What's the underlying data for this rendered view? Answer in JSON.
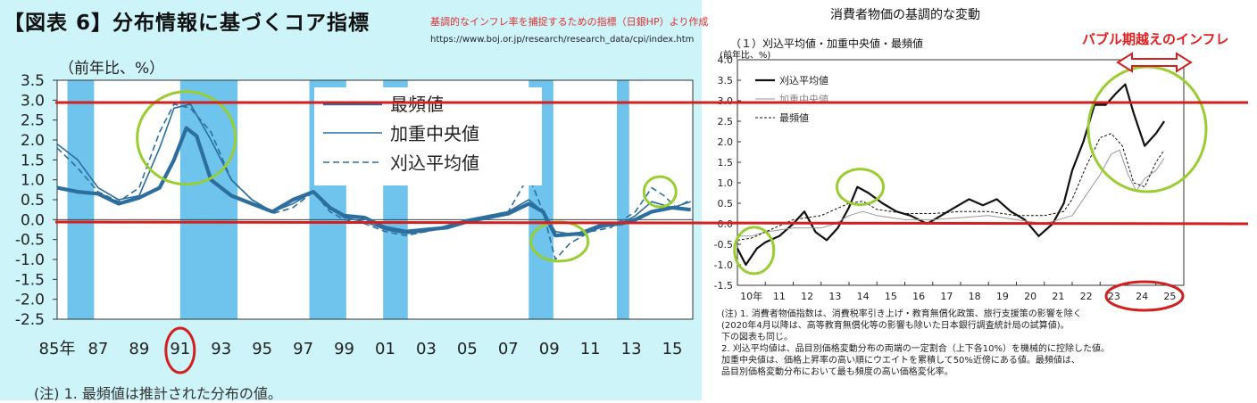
{
  "header": {
    "left_title": "【図表 6】分布情報に基づくコア指標",
    "source_note": "基調的なインフレ率を捕捉するための指標（日銀HP）より作成",
    "source_url": "https://www.boj.or.jp/research/research_data/cpi/index.htm",
    "right_title": "消費者物価の基調的な変動",
    "right_subtitle": "（１）刈込平均値・加重中央値・最頻値",
    "bubble_label": "バブル期越えのインフレ"
  },
  "left_chart": {
    "unit_label": "（前年比、%）",
    "note": "(注) 1.  最頻値は推計された分布の値。"
  },
  "right_chart": {
    "unit_label": "(前年比、%)",
    "notes": [
      "(注) 1.  消費者物価指数は、消費税率引き上げ・教育無償化政策、旅行支援策の影響を除く",
      "         (2020年4月以降は、高等教育無償化等の影響も除いた日本銀行調査統計局の試算値)。",
      "         下の図表も同じ。",
      "      2.  刈込平均値は、品目別価格変動分布の両端の一定割合（上下各10%）を機械的に控除した値。",
      "         加重中央値は、価格上昇率の高い順にウエイトを累積して50%近傍にある値。最頻値は、",
      "         品目別価格変動分布において最も頻度の高い価格変化率。"
    ]
  },
  "colors": {
    "left_background": "#cdf4f9",
    "recession_band": "#6ec4ec",
    "series_blue": "#2c6e9e",
    "annotation_green": "#9acd32",
    "annotation_red": "#d02020"
  },
  "chart_data": [
    {
      "type": "line",
      "ylim": [
        -2.5,
        3.5
      ],
      "yticks": [
        "3.5",
        "3.0",
        "2.5",
        "2.0",
        "1.5",
        "1.0",
        "0.5",
        "0.0",
        "-0.5",
        "-1.0",
        "-1.5",
        "-2.0",
        "-2.5"
      ],
      "xlim": [
        1985,
        2016
      ],
      "xtick_values": [
        1985,
        1987,
        1989,
        1991,
        1993,
        1995,
        1997,
        1999,
        2001,
        2003,
        2005,
        2007,
        2009,
        2011,
        2013,
        2015
      ],
      "xtick_labels": [
        "85年",
        "87",
        "89",
        "91",
        "93",
        "95",
        "97",
        "99",
        "01",
        "03",
        "05",
        "07",
        "09",
        "11",
        "13",
        "15"
      ],
      "grid": false,
      "legend_position": "top-center",
      "shaded_periods": [
        [
          1985.5,
          1986.8
        ],
        [
          1991.0,
          1993.8
        ],
        [
          1997.3,
          1999.1
        ],
        [
          2000.9,
          2002.1
        ],
        [
          2008.0,
          2009.2
        ],
        [
          2012.3,
          2012.9
        ]
      ],
      "series": [
        {
          "name": "最頻値",
          "style": "solid-thick",
          "points": [
            [
              1985,
              0.8
            ],
            [
              1986,
              0.7
            ],
            [
              1987,
              0.65
            ],
            [
              1988,
              0.4
            ],
            [
              1989,
              0.55
            ],
            [
              1990,
              0.8
            ],
            [
              1990.7,
              1.5
            ],
            [
              1991.3,
              2.3
            ],
            [
              1991.8,
              2.1
            ],
            [
              1992.5,
              1.0
            ],
            [
              1993.5,
              0.6
            ],
            [
              1994.5,
              0.4
            ],
            [
              1995.5,
              0.2
            ],
            [
              1996.5,
              0.5
            ],
            [
              1997.5,
              0.7
            ],
            [
              1998.3,
              0.3
            ],
            [
              1999,
              0.1
            ],
            [
              2000,
              0.05
            ],
            [
              2001,
              -0.2
            ],
            [
              2002,
              -0.3
            ],
            [
              2003,
              -0.25
            ],
            [
              2004,
              -0.2
            ],
            [
              2005,
              -0.05
            ],
            [
              2006,
              0.05
            ],
            [
              2007,
              0.15
            ],
            [
              2008,
              0.4
            ],
            [
              2008.7,
              0.2
            ],
            [
              2009.3,
              -0.4
            ],
            [
              2010.5,
              -0.35
            ],
            [
              2011.5,
              -0.15
            ],
            [
              2012.5,
              -0.1
            ],
            [
              2013.2,
              0.0
            ],
            [
              2014,
              0.2
            ],
            [
              2015,
              0.3
            ],
            [
              2015.9,
              0.25
            ]
          ]
        },
        {
          "name": "加重中央値",
          "style": "solid",
          "points": [
            [
              1985,
              1.9
            ],
            [
              1986,
              1.5
            ],
            [
              1987,
              0.8
            ],
            [
              1988,
              0.5
            ],
            [
              1989,
              0.6
            ],
            [
              1990,
              1.8
            ],
            [
              1990.7,
              2.8
            ],
            [
              1991.5,
              2.9
            ],
            [
              1992.5,
              2.0
            ],
            [
              1993.5,
              1.0
            ],
            [
              1994.5,
              0.5
            ],
            [
              1995.5,
              0.2
            ],
            [
              1996.5,
              0.4
            ],
            [
              1997.5,
              0.7
            ],
            [
              1998.3,
              0.3
            ],
            [
              1999,
              0.05
            ],
            [
              2000,
              -0.05
            ],
            [
              2001,
              -0.25
            ],
            [
              2002,
              -0.35
            ],
            [
              2003,
              -0.3
            ],
            [
              2004,
              -0.15
            ],
            [
              2005,
              0.0
            ],
            [
              2006,
              0.1
            ],
            [
              2007,
              0.2
            ],
            [
              2008,
              0.5
            ],
            [
              2008.7,
              0.2
            ],
            [
              2009.3,
              -0.3
            ],
            [
              2010.5,
              -0.4
            ],
            [
              2011.5,
              -0.2
            ],
            [
              2012.5,
              -0.1
            ],
            [
              2013.2,
              0.1
            ],
            [
              2014,
              0.45
            ],
            [
              2015,
              0.3
            ],
            [
              2015.9,
              0.45
            ]
          ]
        },
        {
          "name": "刈込平均値",
          "style": "dashed",
          "points": [
            [
              1985,
              1.8
            ],
            [
              1986,
              1.3
            ],
            [
              1987,
              0.7
            ],
            [
              1988,
              0.45
            ],
            [
              1989,
              0.8
            ],
            [
              1990,
              2.2
            ],
            [
              1990.7,
              2.9
            ],
            [
              1991.5,
              2.8
            ],
            [
              1992.5,
              2.2
            ],
            [
              1993.5,
              1.0
            ],
            [
              1994.5,
              0.5
            ],
            [
              1995.5,
              0.15
            ],
            [
              1996.5,
              0.3
            ],
            [
              1997.5,
              0.7
            ],
            [
              1998.3,
              0.2
            ],
            [
              1999,
              0.0
            ],
            [
              2000,
              -0.1
            ],
            [
              2001,
              -0.3
            ],
            [
              2002,
              -0.4
            ],
            [
              2003,
              -0.3
            ],
            [
              2004,
              -0.2
            ],
            [
              2005,
              -0.05
            ],
            [
              2006,
              0.1
            ],
            [
              2007,
              0.2
            ],
            [
              2008,
              1.1
            ],
            [
              2008.7,
              0.2
            ],
            [
              2009.3,
              -1.0
            ],
            [
              2010,
              -0.6
            ],
            [
              2011,
              -0.3
            ],
            [
              2012,
              -0.2
            ],
            [
              2013.2,
              0.2
            ],
            [
              2014,
              0.8
            ],
            [
              2014.6,
              0.6
            ],
            [
              2015.2,
              0.3
            ],
            [
              2015.9,
              0.5
            ]
          ]
        }
      ]
    },
    {
      "type": "line",
      "ylim": [
        -1.5,
        4.0
      ],
      "yticks": [
        "4.0",
        "3.5",
        "3.0",
        "2.5",
        "2.0",
        "1.5",
        "1.0",
        "0.5",
        "0.0",
        "-0.5",
        "-1.0",
        "-1.5"
      ],
      "xlim": [
        2010,
        2026
      ],
      "xtick_values": [
        2010,
        2011,
        2012,
        2013,
        2014,
        2015,
        2016,
        2017,
        2018,
        2019,
        2020,
        2021,
        2022,
        2023,
        2024,
        2025
      ],
      "xtick_labels": [
        "10年",
        "11",
        "12",
        "13",
        "14",
        "15",
        "16",
        "17",
        "18",
        "19",
        "20",
        "21",
        "22",
        "23",
        "24",
        "25"
      ],
      "grid": false,
      "legend_position": "top-left",
      "series": [
        {
          "name": "刈込平均値",
          "style": "solid-thick",
          "points": [
            [
              2010,
              -0.6
            ],
            [
              2010.3,
              -1.0
            ],
            [
              2010.7,
              -0.6
            ],
            [
              2011,
              -0.45
            ],
            [
              2011.5,
              -0.3
            ],
            [
              2012,
              0.0
            ],
            [
              2012.4,
              0.3
            ],
            [
              2012.8,
              -0.2
            ],
            [
              2013.2,
              -0.4
            ],
            [
              2013.6,
              -0.1
            ],
            [
              2014,
              0.4
            ],
            [
              2014.3,
              0.9
            ],
            [
              2014.7,
              0.75
            ],
            [
              2015.2,
              0.5
            ],
            [
              2015.7,
              0.3
            ],
            [
              2016.2,
              0.2
            ],
            [
              2016.8,
              0.0
            ],
            [
              2017.3,
              0.2
            ],
            [
              2017.8,
              0.4
            ],
            [
              2018.3,
              0.6
            ],
            [
              2018.8,
              0.45
            ],
            [
              2019.3,
              0.6
            ],
            [
              2019.8,
              0.3
            ],
            [
              2020.3,
              0.1
            ],
            [
              2020.8,
              -0.3
            ],
            [
              2021.3,
              0.0
            ],
            [
              2021.7,
              0.5
            ],
            [
              2022,
              1.3
            ],
            [
              2022.4,
              2.0
            ],
            [
              2022.8,
              2.9
            ],
            [
              2023.2,
              2.9
            ],
            [
              2023.6,
              3.2
            ],
            [
              2023.9,
              3.4
            ],
            [
              2024.2,
              2.7
            ],
            [
              2024.6,
              1.9
            ],
            [
              2025,
              2.2
            ],
            [
              2025.3,
              2.5
            ]
          ]
        },
        {
          "name": "加重中央値",
          "style": "solid-thin-gray",
          "points": [
            [
              2010,
              -0.3
            ],
            [
              2010.5,
              -0.3
            ],
            [
              2011,
              -0.2
            ],
            [
              2012,
              -0.1
            ],
            [
              2013,
              -0.1
            ],
            [
              2013.5,
              0.0
            ],
            [
              2014,
              0.2
            ],
            [
              2014.5,
              0.3
            ],
            [
              2015,
              0.2
            ],
            [
              2016,
              0.1
            ],
            [
              2017,
              0.1
            ],
            [
              2018,
              0.15
            ],
            [
              2019,
              0.2
            ],
            [
              2020,
              0.1
            ],
            [
              2021,
              0.0
            ],
            [
              2022,
              0.2
            ],
            [
              2022.5,
              0.7
            ],
            [
              2023,
              1.2
            ],
            [
              2023.4,
              1.7
            ],
            [
              2023.7,
              1.8
            ],
            [
              2024,
              1.2
            ],
            [
              2024.3,
              0.8
            ],
            [
              2024.6,
              1.1
            ],
            [
              2025,
              1.3
            ],
            [
              2025.3,
              1.6
            ]
          ]
        },
        {
          "name": "最頻値",
          "style": "dashed",
          "points": [
            [
              2010,
              -0.4
            ],
            [
              2010.5,
              -0.35
            ],
            [
              2011,
              -0.2
            ],
            [
              2012,
              0.1
            ],
            [
              2013,
              0.2
            ],
            [
              2014,
              0.5
            ],
            [
              2014.5,
              0.55
            ],
            [
              2015,
              0.35
            ],
            [
              2016,
              0.25
            ],
            [
              2017,
              0.25
            ],
            [
              2018,
              0.3
            ],
            [
              2019,
              0.3
            ],
            [
              2020,
              0.2
            ],
            [
              2021,
              0.2
            ],
            [
              2021.7,
              0.3
            ],
            [
              2022,
              0.6
            ],
            [
              2022.5,
              1.4
            ],
            [
              2023,
              2.1
            ],
            [
              2023.4,
              2.2
            ],
            [
              2023.8,
              1.9
            ],
            [
              2024.2,
              1.0
            ],
            [
              2024.6,
              0.9
            ],
            [
              2025,
              1.5
            ],
            [
              2025.3,
              1.8
            ]
          ]
        }
      ]
    }
  ]
}
